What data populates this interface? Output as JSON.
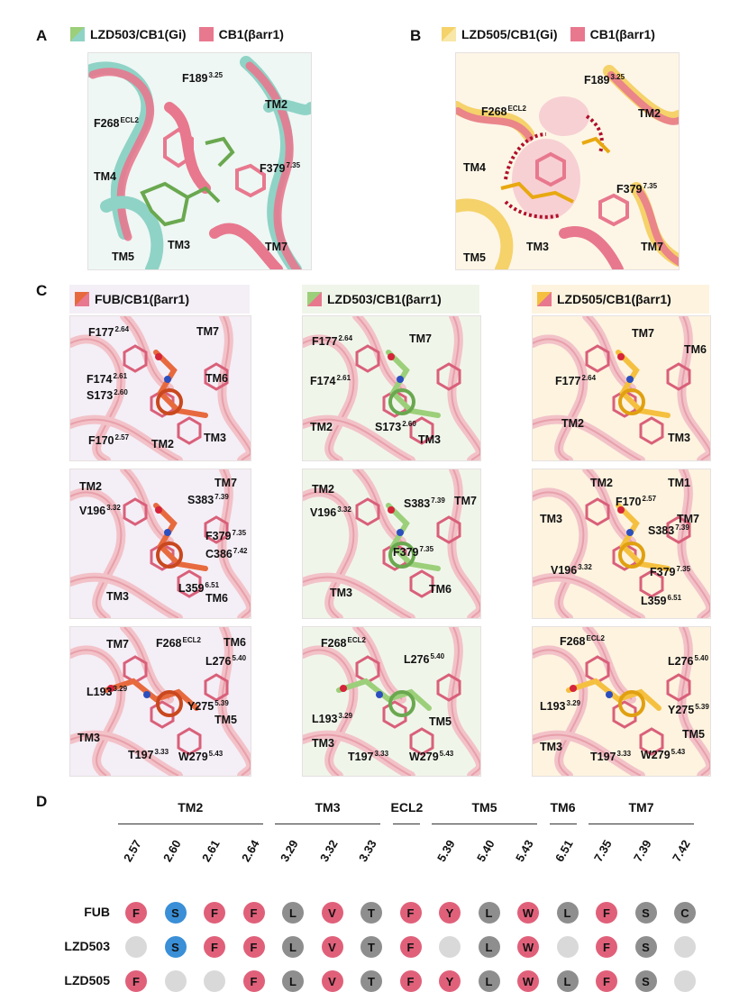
{
  "panels": {
    "A": {
      "letter": "A",
      "legend": [
        "LZD503/CB1(Gi)",
        "CB1(βarr1)"
      ],
      "labels": [
        {
          "base": "F189",
          "sup": "3.25"
        },
        {
          "base": "F268",
          "sup": "ECL2"
        },
        {
          "base": "TM2",
          "sup": ""
        },
        {
          "base": "TM4",
          "sup": ""
        },
        {
          "base": "F379",
          "sup": "7.35"
        },
        {
          "base": "TM3",
          "sup": ""
        },
        {
          "base": "TM5",
          "sup": ""
        },
        {
          "base": "TM7",
          "sup": ""
        }
      ]
    },
    "B": {
      "letter": "B",
      "legend": [
        "LZD505/CB1(Gi)",
        "CB1(βarr1)"
      ],
      "labels": [
        {
          "base": "F189",
          "sup": "3.25"
        },
        {
          "base": "F268",
          "sup": "ECL2"
        },
        {
          "base": "TM2",
          "sup": ""
        },
        {
          "base": "TM4",
          "sup": ""
        },
        {
          "base": "F379",
          "sup": "7.35"
        },
        {
          "base": "TM3",
          "sup": ""
        },
        {
          "base": "TM5",
          "sup": ""
        },
        {
          "base": "TM7",
          "sup": ""
        }
      ]
    },
    "C": {
      "letter": "C",
      "columns": [
        {
          "legend": "FUB/CB1(βarr1)",
          "rows": [
            [
              {
                "base": "F177",
                "sup": "2.64"
              },
              {
                "base": "TM7",
                "sup": ""
              },
              {
                "base": "F174",
                "sup": "2.61"
              },
              {
                "base": "S173",
                "sup": "2.60"
              },
              {
                "base": "TM6",
                "sup": ""
              },
              {
                "base": "F170",
                "sup": "2.57"
              },
              {
                "base": "TM2",
                "sup": ""
              },
              {
                "base": "TM3",
                "sup": ""
              }
            ],
            [
              {
                "base": "TM2",
                "sup": ""
              },
              {
                "base": "V196",
                "sup": "3.32"
              },
              {
                "base": "S383",
                "sup": "7.39"
              },
              {
                "base": "TM7",
                "sup": ""
              },
              {
                "base": "F379",
                "sup": "7.35"
              },
              {
                "base": "C386",
                "sup": "7.42"
              },
              {
                "base": "L359",
                "sup": "6.51"
              },
              {
                "base": "TM3",
                "sup": ""
              },
              {
                "base": "TM6",
                "sup": ""
              }
            ],
            [
              {
                "base": "TM7",
                "sup": ""
              },
              {
                "base": "F268",
                "sup": "ECL2"
              },
              {
                "base": "TM6",
                "sup": ""
              },
              {
                "base": "L276",
                "sup": "5.40"
              },
              {
                "base": "L193",
                "sup": "3.29"
              },
              {
                "base": "Y275",
                "sup": "5.39"
              },
              {
                "base": "TM5",
                "sup": ""
              },
              {
                "base": "TM3",
                "sup": ""
              },
              {
                "base": "T197",
                "sup": "3.33"
              },
              {
                "base": "W279",
                "sup": "5.43"
              }
            ]
          ]
        },
        {
          "legend": "LZD503/CB1(βarr1)",
          "rows": [
            [
              {
                "base": "F177",
                "sup": "2.64"
              },
              {
                "base": "TM7",
                "sup": ""
              },
              {
                "base": "F174",
                "sup": "2.61"
              },
              {
                "base": "TM2",
                "sup": ""
              },
              {
                "base": "S173",
                "sup": "2.60"
              },
              {
                "base": "TM3",
                "sup": ""
              }
            ],
            [
              {
                "base": "TM2",
                "sup": ""
              },
              {
                "base": "V196",
                "sup": "3.32"
              },
              {
                "base": "S383",
                "sup": "7.39"
              },
              {
                "base": "TM7",
                "sup": ""
              },
              {
                "base": "F379",
                "sup": "7.35"
              },
              {
                "base": "TM3",
                "sup": ""
              },
              {
                "base": "TM6",
                "sup": ""
              }
            ],
            [
              {
                "base": "F268",
                "sup": "ECL2"
              },
              {
                "base": "L276",
                "sup": "5.40"
              },
              {
                "base": "L193",
                "sup": "3.29"
              },
              {
                "base": "TM5",
                "sup": ""
              },
              {
                "base": "TM3",
                "sup": ""
              },
              {
                "base": "T197",
                "sup": "3.33"
              },
              {
                "base": "W279",
                "sup": "5.43"
              }
            ]
          ]
        },
        {
          "legend": "LZD505/CB1(βarr1)",
          "rows": [
            [
              {
                "base": "TM7",
                "sup": ""
              },
              {
                "base": "TM6",
                "sup": ""
              },
              {
                "base": "F177",
                "sup": "2.64"
              },
              {
                "base": "TM2",
                "sup": ""
              },
              {
                "base": "TM3",
                "sup": ""
              }
            ],
            [
              {
                "base": "TM2",
                "sup": ""
              },
              {
                "base": "TM1",
                "sup": ""
              },
              {
                "base": "F170",
                "sup": "2.57"
              },
              {
                "base": "TM3",
                "sup": ""
              },
              {
                "base": "TM7",
                "sup": ""
              },
              {
                "base": "S383",
                "sup": "7.39"
              },
              {
                "base": "V196",
                "sup": "3.32"
              },
              {
                "base": "F379",
                "sup": "7.35"
              },
              {
                "base": "L359",
                "sup": "6.51"
              }
            ],
            [
              {
                "base": "F268",
                "sup": "ECL2"
              },
              {
                "base": "L276",
                "sup": "5.40"
              },
              {
                "base": "L193",
                "sup": "3.29"
              },
              {
                "base": "Y275",
                "sup": "5.39"
              },
              {
                "base": "TM5",
                "sup": ""
              },
              {
                "base": "TM3",
                "sup": ""
              },
              {
                "base": "T197",
                "sup": "3.33"
              },
              {
                "base": "W279",
                "sup": "5.43"
              }
            ]
          ]
        }
      ]
    },
    "D": {
      "letter": "D",
      "groups": [
        "TM2",
        "TM3",
        "ECL2",
        "TM5",
        "TM6",
        "TM7"
      ],
      "positions": [
        "2.57",
        "2.60",
        "2.61",
        "2.64",
        "3.29",
        "3.32",
        "3.33",
        "",
        "5.39",
        "5.40",
        "5.43",
        "6.51",
        "7.35",
        "7.39",
        "7.42"
      ],
      "rows": [
        {
          "name": "FUB",
          "cells": [
            "F",
            "S",
            "F",
            "F",
            "L",
            "V",
            "T",
            "F",
            "Y",
            "L",
            "W",
            "L",
            "F",
            "S",
            "C"
          ]
        },
        {
          "name": "LZD503",
          "cells": [
            "",
            "S",
            "F",
            "F",
            "L",
            "V",
            "T",
            "F",
            "",
            "L",
            "W",
            "",
            "F",
            "S",
            ""
          ]
        },
        {
          "name": "LZD505",
          "cells": [
            "F",
            "",
            "",
            "F",
            "L",
            "V",
            "T",
            "F",
            "Y",
            "L",
            "W",
            "L",
            "F",
            "S",
            ""
          ]
        }
      ],
      "colors": {
        "aromatic": "#e0607a",
        "polar": "#3a8fd6",
        "hydrophobic": "#8e8e8e",
        "absent": "#d9d9d9"
      }
    }
  },
  "colors": {
    "teal": "#8fd3c6",
    "pink": "#e8788e",
    "yellow": "#f5d26a",
    "green": "#9ccf7a",
    "orange": "#e76a3e",
    "panel_bg_C1": "#f4eef6",
    "panel_bg_C2": "#f0f5ea",
    "panel_bg_C3": "#fdf3df"
  }
}
